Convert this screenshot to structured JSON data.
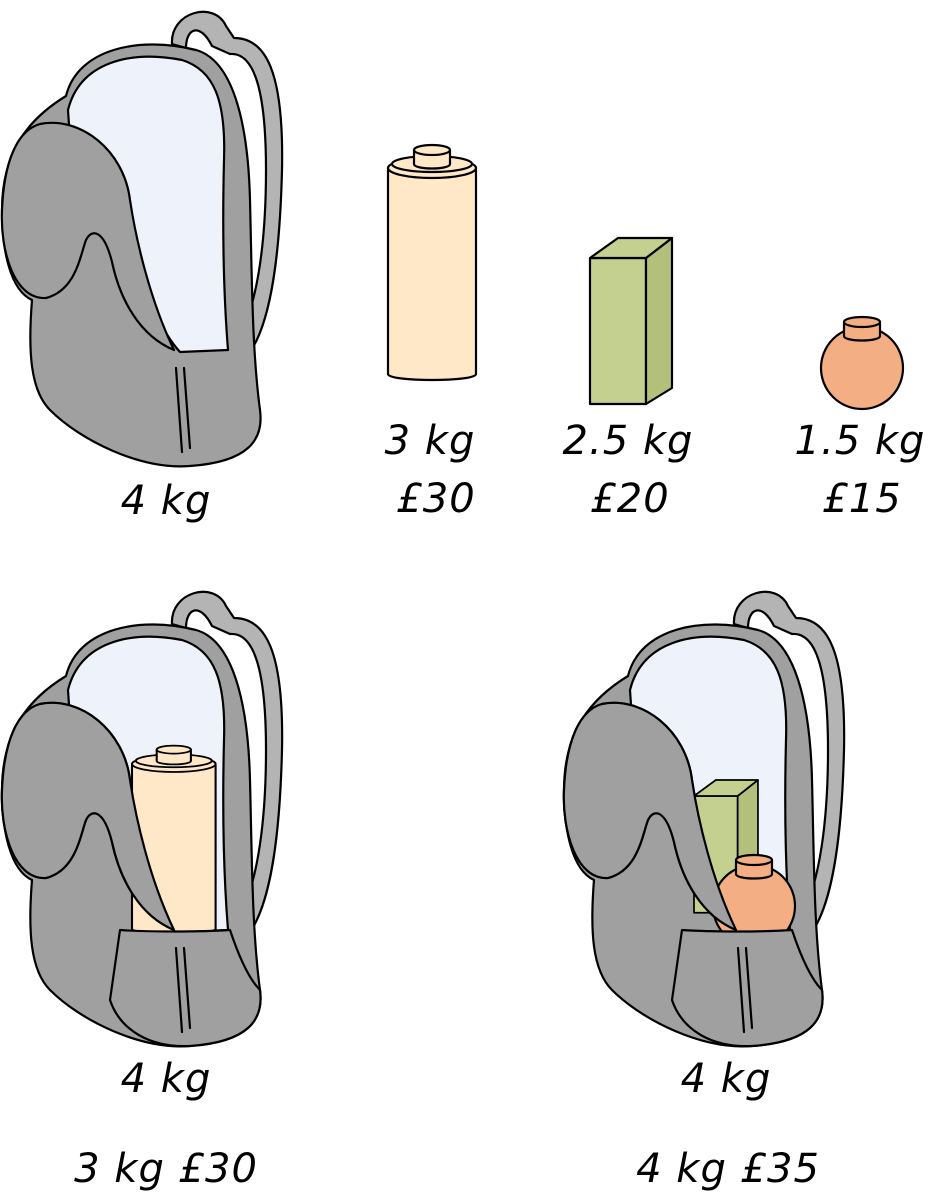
{
  "colors": {
    "bag": "#a0a0a0",
    "bag_strap": "#b4b4b4",
    "bag_inside": "#eef2fb",
    "bottle": "#ffe8c8",
    "box_front": "#c4d090",
    "box_side": "#b2c07c",
    "ball": "#f4ae84",
    "outline": "#000000"
  },
  "icons": [
    "backpack-icon",
    "bottle-icon",
    "box-icon",
    "round-jar-icon"
  ],
  "backpack": {
    "weight": "4 kg"
  },
  "items": [
    {
      "name": "bottle",
      "weight": "3 kg",
      "value": "£30"
    },
    {
      "name": "box",
      "weight": "2.5 kg",
      "value": "£20"
    },
    {
      "name": "jar",
      "weight": "1.5 kg",
      "value": "£15"
    }
  ],
  "packed_left": {
    "bag_weight": "4 kg",
    "total": "3 kg £30"
  },
  "packed_right": {
    "bag_weight": "4 kg",
    "total": "4 kg £35"
  }
}
